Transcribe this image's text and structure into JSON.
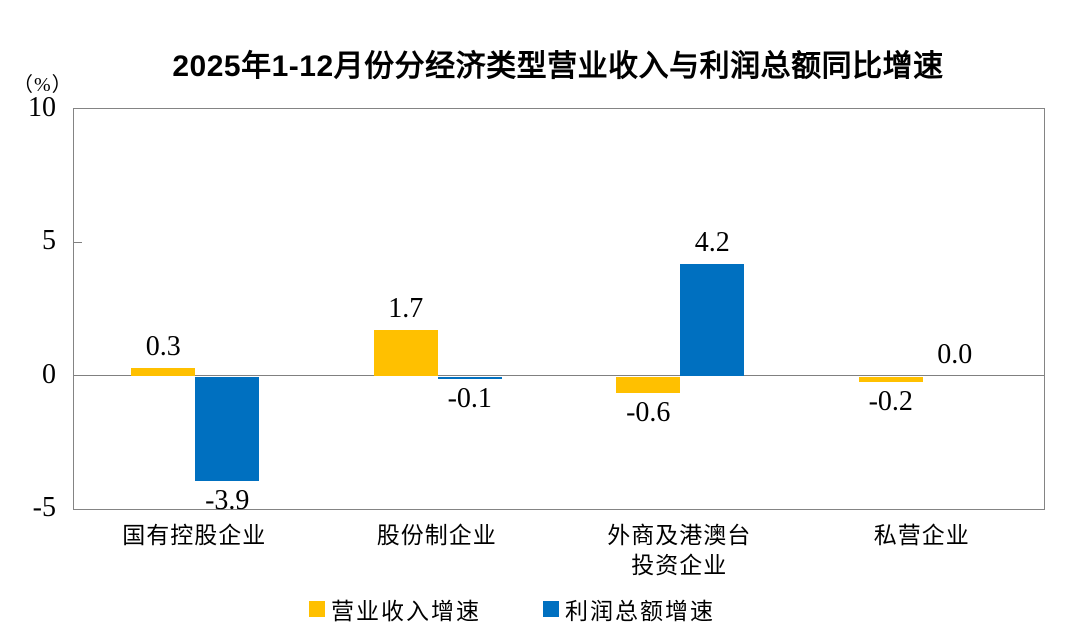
{
  "chart_data": {
    "type": "bar",
    "title": "2025年1-12月份分经济类型营业收入与利润总额同比增速",
    "unit_label": "（%）",
    "xlabel": "",
    "ylabel": "（%）",
    "ylim": [
      -5,
      10
    ],
    "yticks": [
      10,
      5,
      0,
      -5
    ],
    "grid": false,
    "legend_position": "bottom",
    "frame_color": "#848484",
    "categories": [
      [
        "国有控股企业"
      ],
      [
        "股份制企业"
      ],
      [
        "外商及港澳台",
        "投资企业"
      ],
      [
        "私营企业"
      ]
    ],
    "series": [
      {
        "name": "营业收入增速",
        "color": "#FFC000",
        "values": [
          0.3,
          1.7,
          -0.6,
          -0.2
        ]
      },
      {
        "name": "利润总额增速",
        "color": "#0070C0",
        "values": [
          -3.9,
          -0.1,
          4.2,
          0.0
        ]
      }
    ]
  }
}
